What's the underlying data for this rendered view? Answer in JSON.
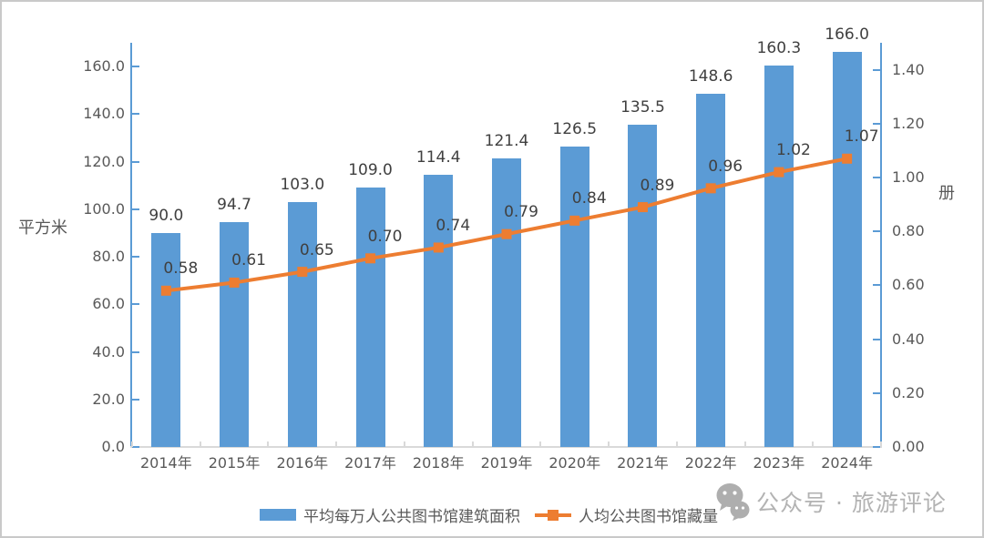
{
  "chart_data": {
    "type": "bar+line",
    "categories": [
      "2014年",
      "2015年",
      "2016年",
      "2017年",
      "2018年",
      "2019年",
      "2020年",
      "2021年",
      "2022年",
      "2023年",
      "2024年"
    ],
    "series": [
      {
        "name": "平均每万人公共图书馆建筑面积",
        "type": "bar",
        "axis": "left",
        "color": "#5B9BD5",
        "values": [
          90.0,
          94.7,
          103.0,
          109.0,
          114.4,
          121.4,
          126.5,
          135.5,
          148.6,
          160.3,
          166.0
        ],
        "labels": [
          "90.0",
          "94.7",
          "103.0",
          "109.0",
          "114.4",
          "121.4",
          "126.5",
          "135.5",
          "148.6",
          "160.3",
          "166.0"
        ]
      },
      {
        "name": "人均公共图书馆藏量",
        "type": "line",
        "axis": "right",
        "color": "#ED7D31",
        "values": [
          0.58,
          0.61,
          0.65,
          0.7,
          0.74,
          0.79,
          0.84,
          0.89,
          0.96,
          1.02,
          1.07
        ],
        "labels": [
          "0.58",
          "0.61",
          "0.65",
          "0.70",
          "0.74",
          "0.79",
          "0.84",
          "0.89",
          "0.96",
          "1.02",
          "1.07"
        ]
      }
    ],
    "left_axis": {
      "unit": "平方米",
      "tick_labels": [
        "0.0",
        "20.0",
        "40.0",
        "60.0",
        "80.0",
        "100.0",
        "120.0",
        "140.0",
        "160.0"
      ],
      "tick_values": [
        0,
        20,
        40,
        60,
        80,
        100,
        120,
        140,
        160
      ],
      "min": 0,
      "max": 170,
      "color": "#5B9BD5"
    },
    "right_axis": {
      "unit": "册",
      "tick_labels": [
        "0.00",
        "0.20",
        "0.40",
        "0.60",
        "0.80",
        "1.00",
        "1.20",
        "1.40"
      ],
      "tick_values": [
        0,
        0.2,
        0.4,
        0.6,
        0.8,
        1.0,
        1.2,
        1.4
      ],
      "min": 0,
      "max": 1.5,
      "color": "#5B9BD5"
    },
    "grid": false,
    "legend_position": "bottom"
  },
  "watermark": {
    "icon": "wechat-icon",
    "text": "公众号 · 旅游评论"
  },
  "colors": {
    "bar": "#5B9BD5",
    "line": "#ED7D31",
    "axis": "#5B9BD5",
    "xaxis": "#d9d9d9",
    "text": "#595959",
    "data_label": "#404040",
    "watermark": "#b3b3b3"
  }
}
